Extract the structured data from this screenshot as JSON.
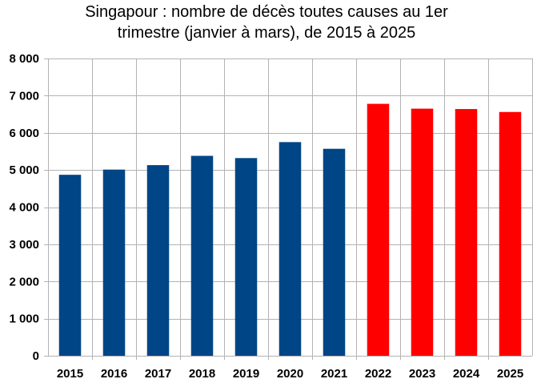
{
  "chart_data": {
    "type": "bar",
    "title_lines": [
      "Singapour : nombre de décès toutes causes au 1er",
      "trimestre (janvier à mars), de 2015 à 2025"
    ],
    "xlabel": "",
    "ylabel": "",
    "categories": [
      "2015",
      "2016",
      "2017",
      "2018",
      "2019",
      "2020",
      "2021",
      "2022",
      "2023",
      "2024",
      "2025"
    ],
    "values": [
      4870,
      5010,
      5130,
      5380,
      5320,
      5750,
      5570,
      6780,
      6650,
      6640,
      6560
    ],
    "bar_colors": [
      "#004586",
      "#004586",
      "#004586",
      "#004586",
      "#004586",
      "#004586",
      "#004586",
      "#ff0000",
      "#ff0000",
      "#ff0000",
      "#ff0000"
    ],
    "ylim": [
      0,
      8000
    ],
    "yticks": [
      0,
      1000,
      2000,
      3000,
      4000,
      5000,
      6000,
      7000,
      8000
    ],
    "ytick_labels": [
      "0",
      "1 000",
      "2 000",
      "3 000",
      "4 000",
      "5 000",
      "6 000",
      "7 000",
      "8 000"
    ],
    "grid": true,
    "legend": "none"
  }
}
